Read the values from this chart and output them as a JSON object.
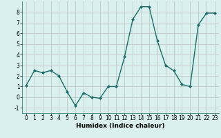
{
  "x": [
    0,
    1,
    2,
    3,
    4,
    5,
    6,
    7,
    8,
    9,
    10,
    11,
    12,
    13,
    14,
    15,
    16,
    17,
    18,
    19,
    20,
    21,
    22,
    23
  ],
  "y": [
    1.1,
    2.5,
    2.3,
    2.5,
    2.0,
    0.5,
    -0.8,
    0.4,
    0.0,
    -0.1,
    1.0,
    1.0,
    3.8,
    7.3,
    8.5,
    8.5,
    5.3,
    3.0,
    2.5,
    1.2,
    1.0,
    6.8,
    7.9,
    7.9
  ],
  "xlabel": "Humidex (Indice chaleur)",
  "xlim": [
    -0.5,
    23.5
  ],
  "ylim": [
    -1.5,
    9.0
  ],
  "yticks": [
    -1,
    0,
    1,
    2,
    3,
    4,
    5,
    6,
    7,
    8
  ],
  "xticks": [
    0,
    1,
    2,
    3,
    4,
    5,
    6,
    7,
    8,
    9,
    10,
    11,
    12,
    13,
    14,
    15,
    16,
    17,
    18,
    19,
    20,
    21,
    22,
    23
  ],
  "line_color": "#1a6b6b",
  "marker_color": "#1a6b6b",
  "bg_color": "#d9f0ee",
  "grid_color": "#c0c8c4",
  "axis_bg": "#d9f0ee",
  "tick_fontsize": 5.5,
  "xlabel_fontsize": 6.5,
  "linewidth": 1.0,
  "markersize": 2.0
}
